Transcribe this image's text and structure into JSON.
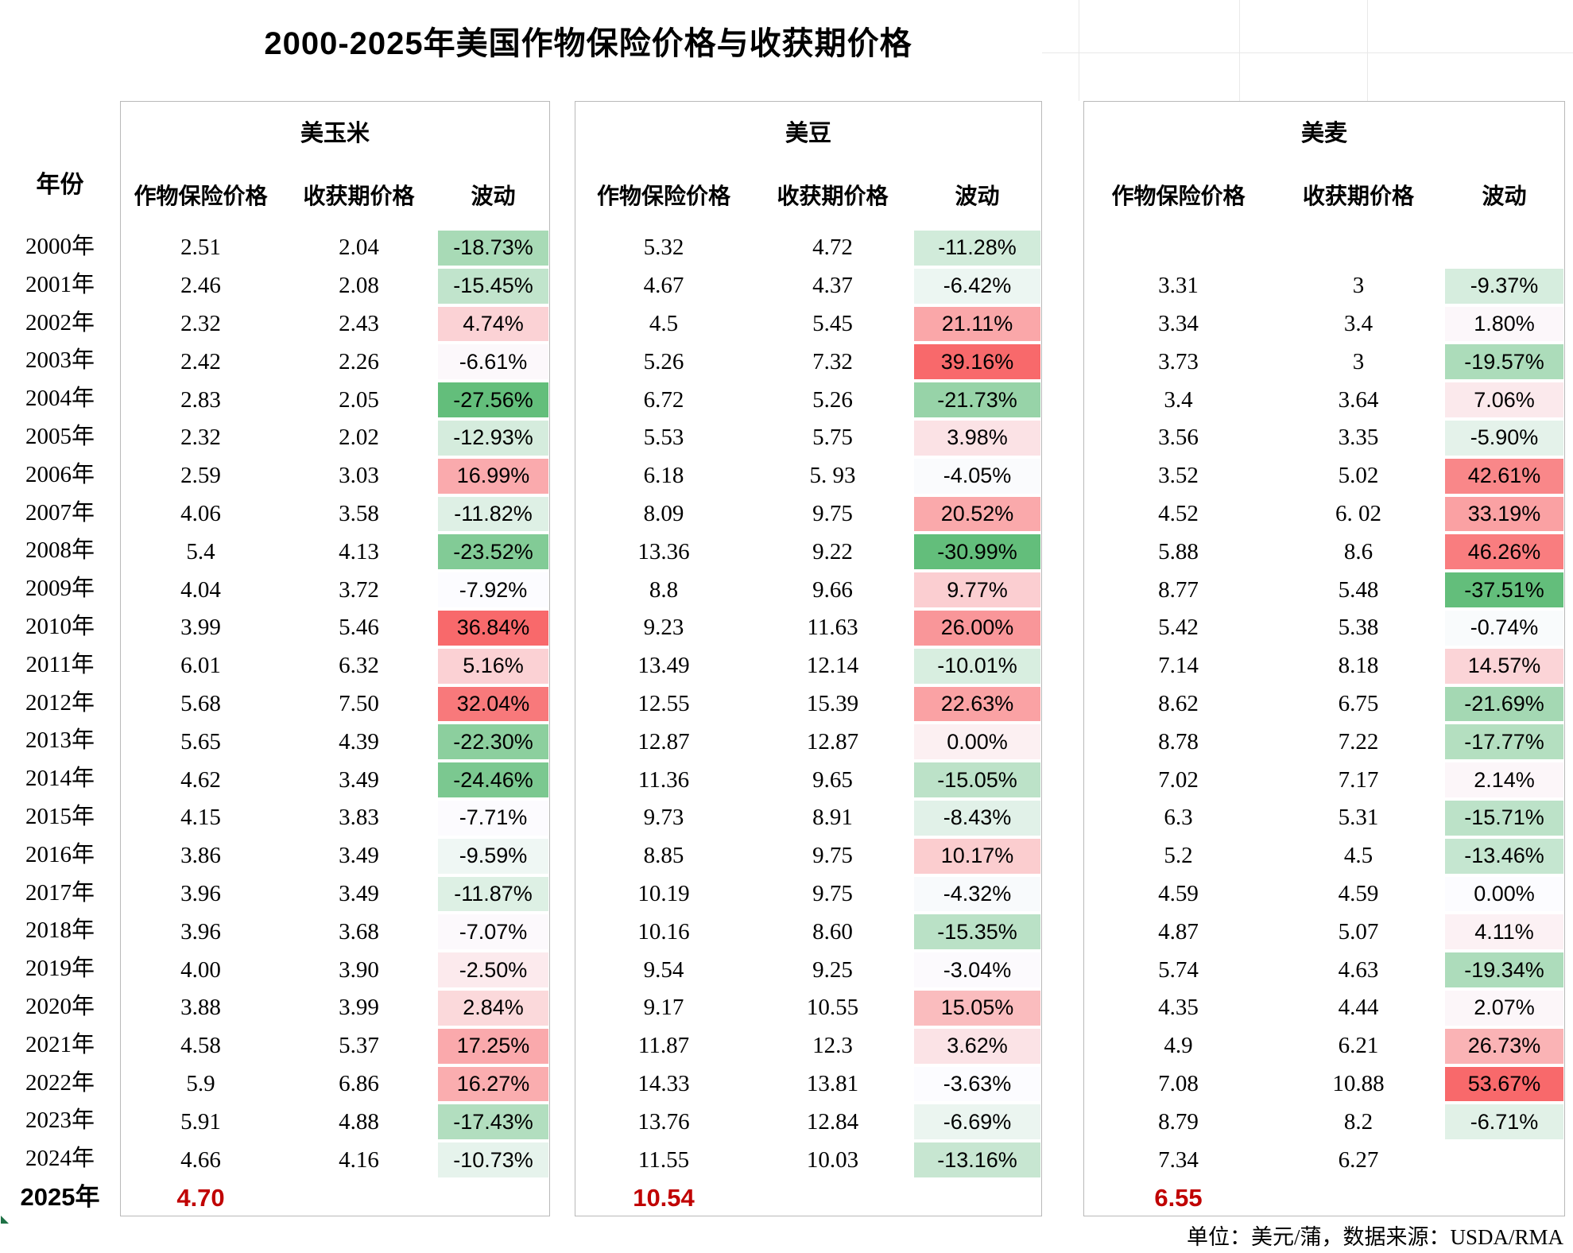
{
  "title": "2000-2025年美国作物保险价格与收获期价格",
  "footer": "单位：美元/蒲，数据来源：USDA/RMA",
  "header": {
    "year": "年份",
    "insurance": "作物保险价格",
    "harvest": "收获期价格",
    "volatility": "波动"
  },
  "groups": [
    {
      "name": "美玉米"
    },
    {
      "name": "美豆"
    },
    {
      "name": "美麦"
    }
  ],
  "colors": {
    "scale_green": "#63BE7B",
    "scale_mid": "#FCFCFF",
    "scale_red": "#F8696B",
    "highlight_red": "#C00000"
  },
  "rows": [
    {
      "year": "2000年",
      "corn": [
        "2.51",
        "2.04",
        "-18.73%"
      ],
      "soy": [
        "5.32",
        "4.72",
        "-11.28%"
      ],
      "wheat": [
        "",
        "",
        ""
      ]
    },
    {
      "year": "2001年",
      "corn": [
        "2.46",
        "2.08",
        "-15.45%"
      ],
      "soy": [
        "4.67",
        "4.37",
        "-6.42%"
      ],
      "wheat": [
        "3.31",
        "3",
        "-9.37%"
      ]
    },
    {
      "year": "2002年",
      "corn": [
        "2.32",
        "2.43",
        "4.74%"
      ],
      "soy": [
        "4.5",
        "5.45",
        "21.11%"
      ],
      "wheat": [
        "3.34",
        "3.4",
        "1.80%"
      ]
    },
    {
      "year": "2003年",
      "corn": [
        "2.42",
        "2.26",
        "-6.61%"
      ],
      "soy": [
        "5.26",
        "7.32",
        "39.16%"
      ],
      "wheat": [
        "3.73",
        "3",
        "-19.57%"
      ]
    },
    {
      "year": "2004年",
      "corn": [
        "2.83",
        "2.05",
        "-27.56%"
      ],
      "soy": [
        "6.72",
        "5.26",
        "-21.73%"
      ],
      "wheat": [
        "3.4",
        "3.64",
        "7.06%"
      ]
    },
    {
      "year": "2005年",
      "corn": [
        "2.32",
        "2.02",
        "-12.93%"
      ],
      "soy": [
        "5.53",
        "5.75",
        "3.98%"
      ],
      "wheat": [
        "3.56",
        "3.35",
        "-5.90%"
      ]
    },
    {
      "year": "2006年",
      "corn": [
        "2.59",
        "3.03",
        "16.99%"
      ],
      "soy": [
        "6.18",
        "5. 93",
        "-4.05%"
      ],
      "wheat": [
        "3.52",
        "5.02",
        "42.61%"
      ]
    },
    {
      "year": "2007年",
      "corn": [
        "4.06",
        "3.58",
        "-11.82%"
      ],
      "soy": [
        "8.09",
        "9.75",
        "20.52%"
      ],
      "wheat": [
        "4.52",
        "6. 02",
        "33.19%"
      ]
    },
    {
      "year": "2008年",
      "corn": [
        "5.4",
        "4.13",
        "-23.52%"
      ],
      "soy": [
        "13.36",
        "9.22",
        "-30.99%"
      ],
      "wheat": [
        "5.88",
        "8.6",
        "46.26%"
      ]
    },
    {
      "year": "2009年",
      "corn": [
        "4.04",
        "3.72",
        "-7.92%"
      ],
      "soy": [
        "8.8",
        "9.66",
        "9.77%"
      ],
      "wheat": [
        "8.77",
        "5.48",
        "-37.51%"
      ]
    },
    {
      "year": "2010年",
      "corn": [
        "3.99",
        "5.46",
        "36.84%"
      ],
      "soy": [
        "9.23",
        "11.63",
        "26.00%"
      ],
      "wheat": [
        "5.42",
        "5.38",
        "-0.74%"
      ]
    },
    {
      "year": "2011年",
      "corn": [
        "6.01",
        "6.32",
        "5.16%"
      ],
      "soy": [
        "13.49",
        "12.14",
        "-10.01%"
      ],
      "wheat": [
        "7.14",
        "8.18",
        "14.57%"
      ]
    },
    {
      "year": "2012年",
      "corn": [
        "5.68",
        "7.50",
        "32.04%"
      ],
      "soy": [
        "12.55",
        "15.39",
        "22.63%"
      ],
      "wheat": [
        "8.62",
        "6.75",
        "-21.69%"
      ]
    },
    {
      "year": "2013年",
      "corn": [
        "5.65",
        "4.39",
        "-22.30%"
      ],
      "soy": [
        "12.87",
        "12.87",
        "0.00%"
      ],
      "wheat": [
        "8.78",
        "7.22",
        "-17.77%"
      ]
    },
    {
      "year": "2014年",
      "corn": [
        "4.62",
        "3.49",
        "-24.46%"
      ],
      "soy": [
        "11.36",
        "9.65",
        "-15.05%"
      ],
      "wheat": [
        "7.02",
        "7.17",
        "2.14%"
      ]
    },
    {
      "year": "2015年",
      "corn": [
        "4.15",
        "3.83",
        "-7.71%"
      ],
      "soy": [
        "9.73",
        "8.91",
        "-8.43%"
      ],
      "wheat": [
        "6.3",
        "5.31",
        "-15.71%"
      ]
    },
    {
      "year": "2016年",
      "corn": [
        "3.86",
        "3.49",
        "-9.59%"
      ],
      "soy": [
        "8.85",
        "9.75",
        "10.17%"
      ],
      "wheat": [
        "5.2",
        "4.5",
        "-13.46%"
      ]
    },
    {
      "year": "2017年",
      "corn": [
        "3.96",
        "3.49",
        "-11.87%"
      ],
      "soy": [
        "10.19",
        "9.75",
        "-4.32%"
      ],
      "wheat": [
        "4.59",
        "4.59",
        "0.00%"
      ]
    },
    {
      "year": "2018年",
      "corn": [
        "3.96",
        "3.68",
        "-7.07%"
      ],
      "soy": [
        "10.16",
        "8.60",
        "-15.35%"
      ],
      "wheat": [
        "4.87",
        "5.07",
        "4.11%"
      ]
    },
    {
      "year": "2019年",
      "corn": [
        "4.00",
        "3.90",
        "-2.50%"
      ],
      "soy": [
        "9.54",
        "9.25",
        "-3.04%"
      ],
      "wheat": [
        "5.74",
        "4.63",
        "-19.34%"
      ]
    },
    {
      "year": "2020年",
      "corn": [
        "3.88",
        "3.99",
        "2.84%"
      ],
      "soy": [
        "9.17",
        "10.55",
        "15.05%"
      ],
      "wheat": [
        "4.35",
        "4.44",
        "2.07%"
      ]
    },
    {
      "year": "2021年",
      "corn": [
        "4.58",
        "5.37",
        "17.25%"
      ],
      "soy": [
        "11.87",
        "12.3",
        "3.62%"
      ],
      "wheat": [
        "4.9",
        "6.21",
        "26.73%"
      ]
    },
    {
      "year": "2022年",
      "corn": [
        "5.9",
        "6.86",
        "16.27%"
      ],
      "soy": [
        "14.33",
        "13.81",
        "-3.63%"
      ],
      "wheat": [
        "7.08",
        "10.88",
        "53.67%"
      ]
    },
    {
      "year": "2023年",
      "corn": [
        "5.91",
        "4.88",
        "-17.43%"
      ],
      "soy": [
        "13.76",
        "12.84",
        "-6.69%"
      ],
      "wheat": [
        "8.79",
        "8.2",
        "-6.71%"
      ]
    },
    {
      "year": "2024年",
      "corn": [
        "4.66",
        "4.16",
        "-10.73%"
      ],
      "soy": [
        "11.55",
        "10.03",
        "-13.16%"
      ],
      "wheat": [
        "7.34",
        "6.27",
        ""
      ]
    },
    {
      "year": "2025年",
      "corn": [
        "4.70",
        "",
        ""
      ],
      "soy": [
        "10.54",
        "",
        ""
      ],
      "wheat": [
        "6.55",
        "",
        ""
      ]
    }
  ]
}
